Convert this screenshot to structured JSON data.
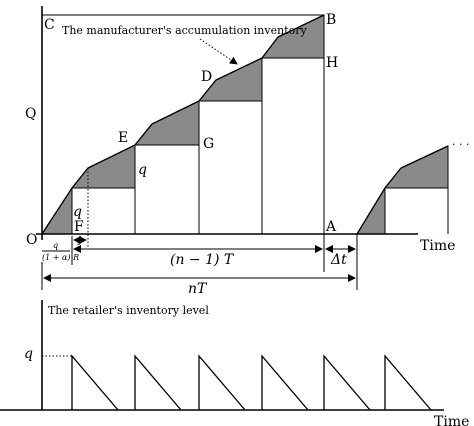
{
  "top_panel": {
    "annotation": "The manufacturer's accumulation inventory",
    "y_axis_label": "Q",
    "x_axis_label": "Time",
    "points": {
      "O": "O",
      "F": "F",
      "E": "E",
      "G": "G",
      "D": "D",
      "H": "H",
      "B": "B",
      "C": "C",
      "A": "A"
    },
    "q_label": "q",
    "q_label_2": "q",
    "t_label": "t",
    "frac_numerator": "q",
    "frac_denominator": "(1 + α) R",
    "span_n_minus_1": "(n − 1) T",
    "span_delta_t": "Δt",
    "span_nT": "nT",
    "continuation": "· · ·"
  },
  "bottom_panel": {
    "title": "The retailer's inventory level",
    "y_axis_label": "q",
    "x_axis_label": "Time"
  }
}
